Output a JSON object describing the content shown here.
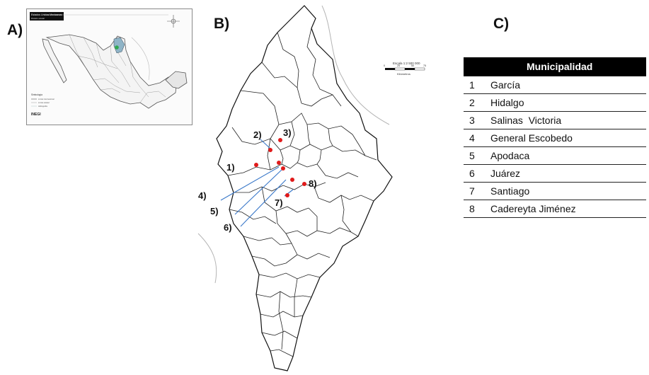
{
  "panels": {
    "a_label": "A)",
    "b_label": "B)",
    "c_label": "C)"
  },
  "inset_map": {
    "header_title": "Estados Unidos Mexicanos",
    "header_subtitle": "División estatal",
    "legend_title": "Simbología",
    "legend_items": [
      "Límite internacional",
      "Límite estatal",
      "Hidrografía"
    ],
    "source_logo": "INEGI",
    "marker_color": "#2fa84f"
  },
  "main_map": {
    "scale_title": "Escala 1:2 500 000",
    "scale_ticks": [
      "0",
      "25",
      "50",
      "75"
    ],
    "scale_unit": "Kilómetros",
    "point_color": "#e01a1a",
    "leader_color": "#3a78c9",
    "callouts": [
      "1)",
      "2)",
      "3)",
      "4)",
      "5)",
      "6)",
      "7)",
      "8)"
    ]
  },
  "table": {
    "header": "Municipalidad",
    "rows": [
      {
        "num": "1",
        "name": "García"
      },
      {
        "num": "2",
        "name": "Hidalgo"
      },
      {
        "num": "3",
        "name": "Salinas  Victoria"
      },
      {
        "num": "4",
        "name": "General Escobedo"
      },
      {
        "num": "5",
        "name": "Apodaca"
      },
      {
        "num": "6",
        "name": "Juárez"
      },
      {
        "num": "7",
        "name": "Santiago"
      },
      {
        "num": "8",
        "name": "Cadereyta Jiménez"
      }
    ]
  }
}
